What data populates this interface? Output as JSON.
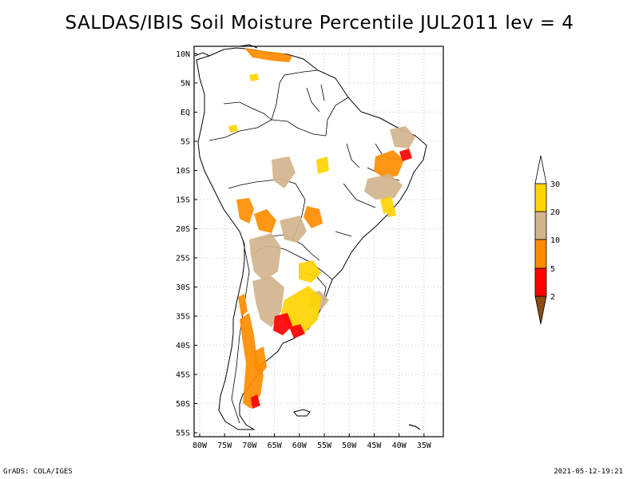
{
  "title": "SALDAS/IBIS Soil Moisture Percentile JUL2011 lev = 4",
  "axes": {
    "lat_ticks": [
      "10N",
      "5N",
      "EQ",
      "5S",
      "10S",
      "15S",
      "20S",
      "25S",
      "30S",
      "35S",
      "40S",
      "45S",
      "50S",
      "55S"
    ],
    "lon_ticks": [
      "80W",
      "75W",
      "70W",
      "65W",
      "60W",
      "55W",
      "50W",
      "45W",
      "40W",
      "35W"
    ]
  },
  "legend": {
    "colors": [
      "#8b4b12",
      "#ff0000",
      "#ff8c00",
      "#d2b48c",
      "#ffd400",
      "#ffffff"
    ],
    "labels": [
      "2",
      "5",
      "10",
      "20",
      "30"
    ]
  },
  "footer": {
    "left": "GrADS: COLA/IGES",
    "right": "2021-05-12-19:21"
  }
}
